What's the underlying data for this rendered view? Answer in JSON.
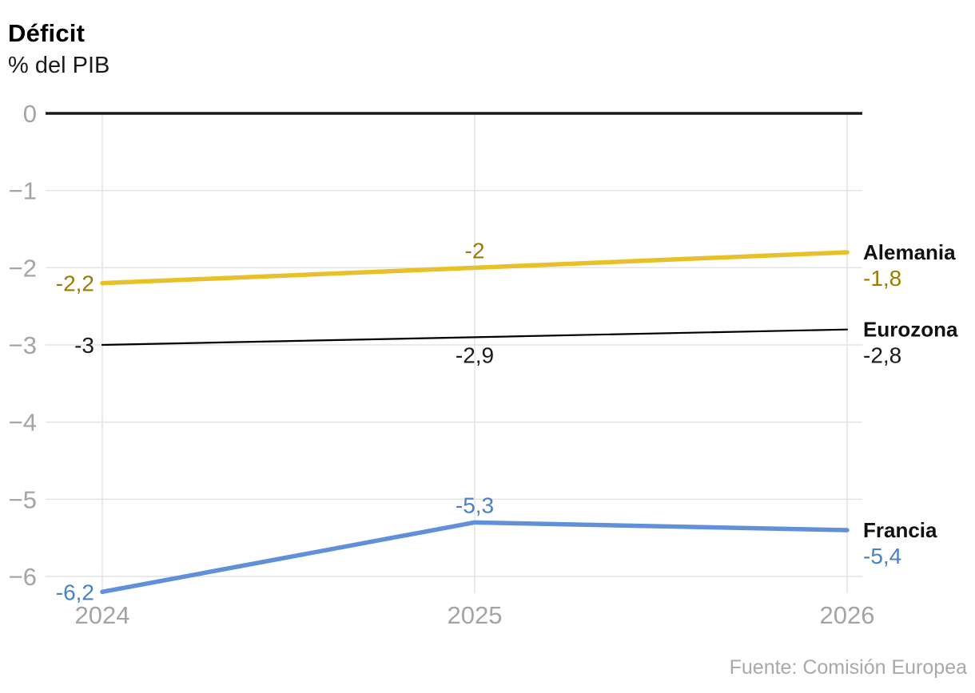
{
  "header": {
    "title": "Déficit",
    "subtitle": "% del PIB"
  },
  "footer": {
    "source": "Fuente: Comisión Europea"
  },
  "colors": {
    "grid": "#e3e3e3",
    "zero_axis": "#1a1a1a",
    "axis_tick_text": "#a4a4a4",
    "source_text": "#a9a9a9",
    "alemania": "#e7c127",
    "alemania_label": "#9c7c00",
    "eurozona": "#000000",
    "eurozona_label": "#1a1a1a",
    "francia": "#6090d8",
    "francia_label": "#4a80c8"
  },
  "chart_data": {
    "type": "line",
    "title": "Déficit",
    "subtitle": "% del PIB",
    "source": "Fuente: Comisión Europea",
    "x": [
      "2024",
      "2025",
      "2026"
    ],
    "xlabel": "",
    "ylabel": "% del PIB",
    "ylim": [
      -6.5,
      0
    ],
    "grid": true,
    "legend_position": "right-end-labels",
    "yticks": {
      "values": [
        0,
        -1,
        -2,
        -3,
        -4,
        -5,
        -6
      ],
      "labels": [
        "0",
        "−1",
        "−2",
        "−3",
        "−4",
        "−5",
        "−6"
      ]
    },
    "series": [
      {
        "name": "Alemania",
        "values": [
          -2.2,
          -2.0,
          -1.8
        ],
        "point_labels": [
          "-2,2",
          "-2",
          "-1,8"
        ],
        "label_placement": [
          "left",
          "above",
          "right"
        ],
        "line_color": "#e7c127",
        "label_color": "#9c7c00",
        "end_value_label": "-1,8"
      },
      {
        "name": "Eurozona",
        "values": [
          -3.0,
          -2.9,
          -2.8
        ],
        "point_labels": [
          "-3",
          "-2,9",
          "-2,8"
        ],
        "label_placement": [
          "left",
          "below",
          "right"
        ],
        "line_color": "#000000",
        "label_color": "#1a1a1a",
        "end_value_label": "-2,8"
      },
      {
        "name": "Francia",
        "values": [
          -6.2,
          -5.3,
          -5.4
        ],
        "point_labels": [
          "-6,2",
          "-5,3",
          "-5,4"
        ],
        "label_placement": [
          "left",
          "above",
          "right"
        ],
        "line_color": "#6090d8",
        "label_color": "#4a80c8",
        "end_value_label": "-5,4"
      }
    ]
  }
}
